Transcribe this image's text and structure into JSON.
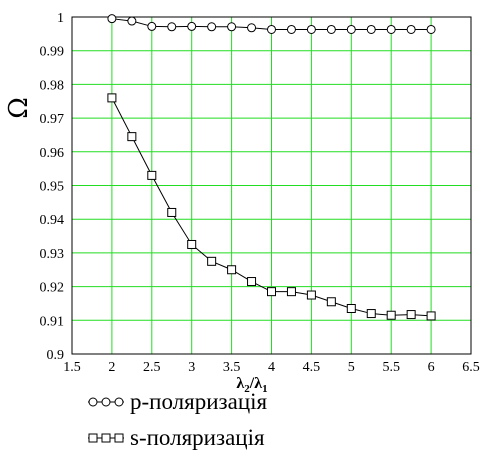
{
  "chart_data": {
    "type": "line",
    "xlabel_main": "λ",
    "xlabel_sub1": "2",
    "xlabel_slash": "/",
    "xlabel_sub2": "1",
    "ylabel": "Ω",
    "xlim": [
      1.5,
      6.5
    ],
    "ylim": [
      0.9,
      1.0
    ],
    "grid": true,
    "grid_color": "#22dd22",
    "x_ticks": [
      "1.5",
      "2",
      "2.5",
      "3",
      "3.5",
      "4",
      "4.5",
      "5",
      "5.5",
      "6",
      "6.5"
    ],
    "y_ticks": [
      "0.9",
      "0.91",
      "0.92",
      "0.93",
      "0.94",
      "0.95",
      "0.96",
      "0.97",
      "0.98",
      "0.99",
      "1"
    ],
    "series": [
      {
        "name": "p-поляризація",
        "marker": "circle",
        "x": [
          2,
          2.25,
          2.5,
          2.75,
          3,
          3.25,
          3.5,
          3.75,
          4,
          4.25,
          4.5,
          4.75,
          5,
          5.25,
          5.5,
          5.75,
          6
        ],
        "y": [
          0.9995,
          0.9988,
          0.9972,
          0.9971,
          0.9972,
          0.9971,
          0.9971,
          0.9968,
          0.9963,
          0.9963,
          0.9963,
          0.9963,
          0.9963,
          0.9963,
          0.9963,
          0.9963,
          0.9963
        ]
      },
      {
        "name": "s-поляризація",
        "marker": "square",
        "x": [
          2,
          2.25,
          2.5,
          2.75,
          3,
          3.25,
          3.5,
          3.75,
          4,
          4.25,
          4.5,
          4.75,
          5,
          5.25,
          5.5,
          5.75,
          6
        ],
        "y": [
          0.976,
          0.9645,
          0.953,
          0.942,
          0.9325,
          0.9275,
          0.925,
          0.9215,
          0.9185,
          0.9185,
          0.9175,
          0.9155,
          0.9135,
          0.912,
          0.9115,
          0.9117,
          0.9113
        ]
      }
    ]
  },
  "legend": {
    "p_label": "p-поляризація",
    "s_label": "s-поляризація"
  }
}
